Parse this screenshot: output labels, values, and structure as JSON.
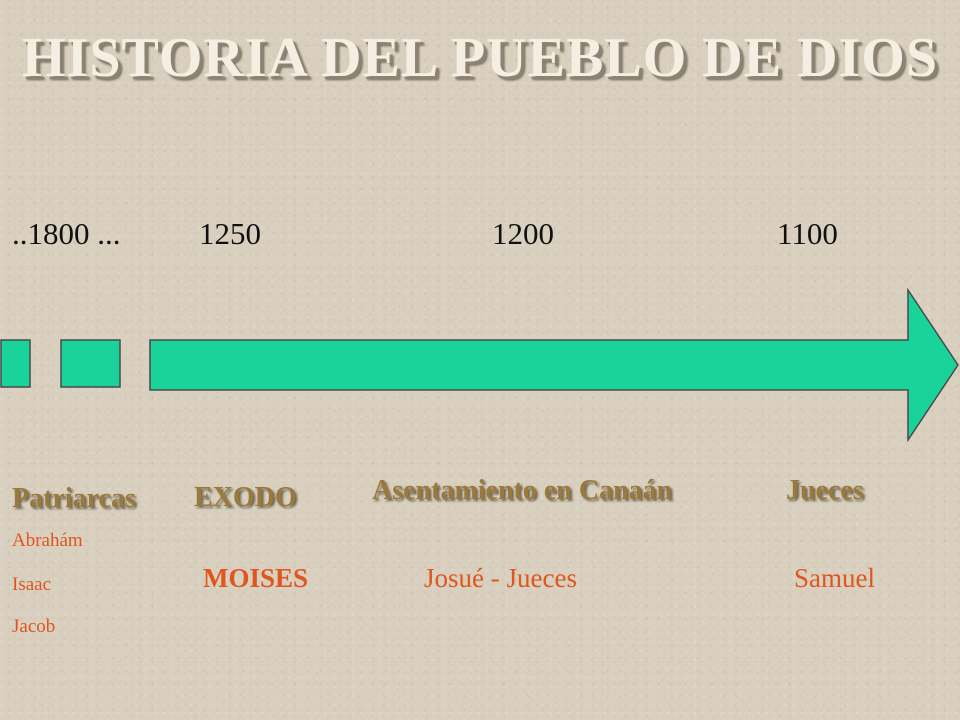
{
  "title": "HISTORIA DEL PUEBLO DE DIOS",
  "years": [
    "..1800 ...",
    "1250",
    "1200",
    "1100"
  ],
  "colors": {
    "background": "#d8cfbe",
    "arrow": "#19d39b",
    "title": "#f4eee3",
    "heading": "#9a7a3c",
    "accent": "#e0561e"
  },
  "periods": {
    "patriarcas": {
      "heading": "Patriarcas",
      "people": [
        "Abrahám",
        "Isaac",
        "Jacob"
      ]
    },
    "exodo": {
      "heading": "EXODO",
      "figure": "MOISES"
    },
    "asentamiento": {
      "heading": "Asentamiento en Canaán",
      "figure": "Josué - Jueces"
    },
    "jueces": {
      "heading": "Jueces",
      "figure": "Samuel"
    }
  }
}
